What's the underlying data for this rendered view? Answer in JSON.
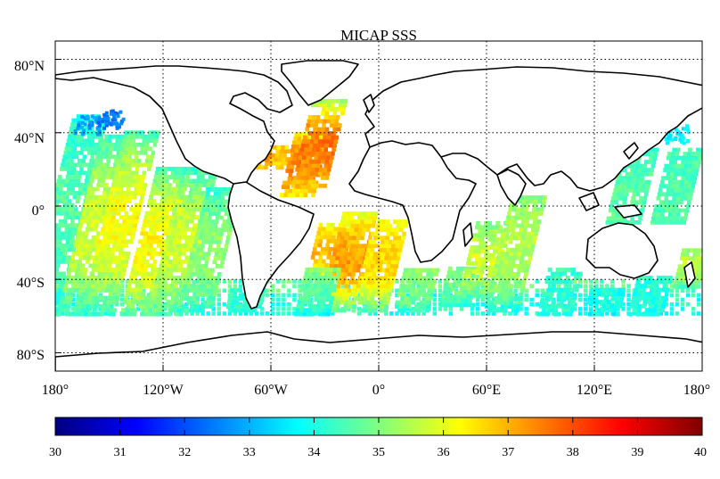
{
  "title": "MICAP SSS",
  "map": {
    "projection": "equirectangular",
    "lon_range": [
      -180,
      180
    ],
    "lat_range": [
      -90,
      90
    ],
    "grid": "dotted",
    "lat_tick_values": [
      80,
      40,
      0,
      -40,
      -80
    ],
    "lat_tick_labels": [
      "80°N",
      "40°N",
      "0°",
      "40°S",
      "80°S"
    ],
    "lon_tick_values": [
      -180,
      -120,
      -60,
      0,
      60,
      120,
      180
    ],
    "lon_tick_labels": [
      "180°",
      "120°W",
      "60°W",
      "0°",
      "60°E",
      "120°E",
      "180°"
    ]
  },
  "colorbar": {
    "colormap": "jet",
    "min": 30,
    "max": 40,
    "tick_labels": [
      "30",
      "31",
      "32",
      "33",
      "34",
      "35",
      "36",
      "37",
      "38",
      "39",
      "40"
    ]
  },
  "swaths": [
    {
      "lon": -175,
      "lat_s": -60,
      "lat_n": 48,
      "v_mid": 34.6,
      "v_high": 34.0,
      "v_low": 34.0
    },
    {
      "lon": -158,
      "lat_s": -60,
      "lat_n": 38,
      "v_mid": 35.8,
      "v_high": 34.2,
      "v_low": 34.2
    },
    {
      "lon": -145,
      "lat_s": -60,
      "lat_n": 40,
      "v_mid": 36.2,
      "v_high": 34.4,
      "v_low": 34.2
    },
    {
      "lon": -125,
      "lat_s": -60,
      "lat_n": 20,
      "v_mid": 36.3,
      "v_high": 34.4,
      "v_low": 34.6
    },
    {
      "lon": -110,
      "lat_s": -60,
      "lat_n": 20,
      "v_mid": 35.8,
      "v_high": 34.2,
      "v_low": 34.5
    },
    {
      "lon": -95,
      "lat_s": -58,
      "lat_n": 10,
      "v_mid": 35.2,
      "v_high": 34.0,
      "v_low": 34.3
    },
    {
      "lon": -75,
      "lat_s": -58,
      "lat_n": -45,
      "v_mid": 34.2,
      "v_high": 34.2,
      "v_low": 34.0
    },
    {
      "lon": -58,
      "lat_s": 20,
      "lat_n": 32,
      "v_mid": 37.0,
      "v_high": 36.5,
      "v_low": 36.5
    },
    {
      "lon": -42,
      "lat_s": 5,
      "lat_n": 40,
      "v_mid": 37.5,
      "v_high": 36.0,
      "v_low": 36.5
    },
    {
      "lon": -34,
      "lat_s": 10,
      "lat_n": 57,
      "v_mid": 37.6,
      "v_high": 35.2,
      "v_low": 36.8
    },
    {
      "lon": -28,
      "lat_s": -40,
      "lat_n": -10,
      "v_mid": 37.0,
      "v_high": 36.0,
      "v_low": 35.5
    },
    {
      "lon": -18,
      "lat_s": -58,
      "lat_n": -5,
      "v_mid": 37.2,
      "v_high": 36.0,
      "v_low": 34.6
    },
    {
      "lon": -35,
      "lat_s": -60,
      "lat_n": -35,
      "v_mid": 34.6,
      "v_high": 35.2,
      "v_low": 33.8
    },
    {
      "lon": 0,
      "lat_s": -58,
      "lat_n": -8,
      "v_mid": 36.6,
      "v_high": 36.2,
      "v_low": 34.5
    },
    {
      "lon": 20,
      "lat_s": -58,
      "lat_n": -35,
      "v_mid": 35.0,
      "v_high": 35.2,
      "v_low": 34.2
    },
    {
      "lon": 45,
      "lat_s": -55,
      "lat_n": -35,
      "v_mid": 34.8,
      "v_high": 35.0,
      "v_low": 34.2
    },
    {
      "lon": 58,
      "lat_s": -50,
      "lat_n": -10,
      "v_mid": 35.8,
      "v_high": 35.0,
      "v_low": 34.5
    },
    {
      "lon": 75,
      "lat_s": -58,
      "lat_n": 5,
      "v_mid": 35.5,
      "v_high": 35.0,
      "v_low": 34.0
    },
    {
      "lon": 100,
      "lat_s": -60,
      "lat_n": -35,
      "v_mid": 34.2,
      "v_high": 34.4,
      "v_low": 34.0
    },
    {
      "lon": 150,
      "lat_s": -60,
      "lat_n": -40,
      "v_mid": 34.0,
      "v_high": 34.2,
      "v_low": 34.0
    },
    {
      "lon": 140,
      "lat_s": -10,
      "lat_n": 30,
      "v_mid": 34.6,
      "v_high": 34.4,
      "v_low": 34.6
    },
    {
      "lon": 165,
      "lat_s": -10,
      "lat_n": 30,
      "v_mid": 34.5,
      "v_high": 34.4,
      "v_low": 34.6
    },
    {
      "lon": 175,
      "lat_s": -45,
      "lat_n": -25,
      "v_mid": 35.6,
      "v_high": 35.2,
      "v_low": 34.5
    },
    {
      "lon": 125,
      "lat_s": -60,
      "lat_n": -45,
      "v_mid": 34.0,
      "v_high": 34.0,
      "v_low": 33.8
    }
  ],
  "band_40s": {
    "lat_s": -60,
    "lat_n": -40,
    "value": 34.3
  },
  "spots": [
    {
      "lon": -163,
      "lat": 45,
      "value": 32.8
    },
    {
      "lon": -150,
      "lat": 48,
      "value": 32.4
    },
    {
      "lon": 165,
      "lat": 40,
      "value": 33.6
    },
    {
      "lon": -68,
      "lat": 30,
      "value": 37.3
    }
  ]
}
